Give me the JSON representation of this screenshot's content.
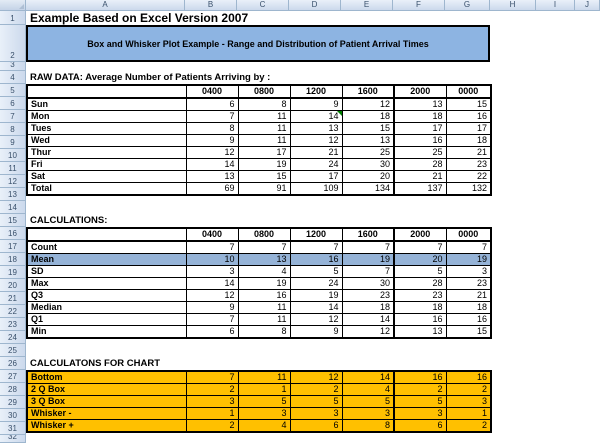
{
  "sheet_title": "Example Based on Excel Version 2007",
  "banner": {
    "text": "Box and Whisker Plot Example - Range and Distribution of Patient Arrival Times",
    "fill_color": "#8DB4E2"
  },
  "grid": {
    "column_headers": [
      "A",
      "B",
      "C",
      "D",
      "E",
      "F",
      "G",
      "H",
      "I",
      "J"
    ],
    "row_numbers": [
      "1",
      "2",
      "3",
      "4",
      "5",
      "6",
      "7",
      "8",
      "9",
      "10",
      "11",
      "12",
      "13",
      "14",
      "15",
      "16",
      "17",
      "18",
      "19",
      "20",
      "21",
      "22",
      "23",
      "24",
      "25",
      "26",
      "27",
      "28",
      "29",
      "30",
      "31",
      "32"
    ]
  },
  "time_headers": [
    "0400",
    "0800",
    "1200",
    "1600",
    "2000",
    "0000"
  ],
  "raw_data": {
    "title": "RAW DATA: Average Number of Patients Arriving by :",
    "rows": [
      {
        "label": "Sun",
        "values": [
          6,
          8,
          9,
          12,
          13,
          15
        ]
      },
      {
        "label": "Mon",
        "values": [
          7,
          11,
          14,
          18,
          18,
          16
        ],
        "note_cell": 2
      },
      {
        "label": "Tues",
        "values": [
          8,
          11,
          13,
          15,
          17,
          17
        ]
      },
      {
        "label": "Wed",
        "values": [
          9,
          11,
          12,
          13,
          16,
          18
        ]
      },
      {
        "label": "Thur",
        "values": [
          12,
          17,
          21,
          25,
          25,
          21
        ]
      },
      {
        "label": "Fri",
        "values": [
          14,
          19,
          24,
          30,
          28,
          23
        ]
      },
      {
        "label": "Sat",
        "values": [
          13,
          15,
          17,
          20,
          21,
          22
        ]
      },
      {
        "label": "Total",
        "values": [
          69,
          91,
          109,
          134,
          137,
          132
        ]
      }
    ]
  },
  "calculations": {
    "title": "CALCULATIONS:",
    "rows": [
      {
        "label": "Count",
        "values": [
          7,
          7,
          7,
          7,
          7,
          7
        ]
      },
      {
        "label": "Mean",
        "values": [
          10,
          13,
          16,
          19,
          20,
          19
        ],
        "highlight": true
      },
      {
        "label": "SD",
        "values": [
          3,
          4,
          5,
          7,
          5,
          3
        ]
      },
      {
        "label": "Max",
        "values": [
          14,
          19,
          24,
          30,
          28,
          23
        ]
      },
      {
        "label": "Q3",
        "values": [
          12,
          16,
          19,
          23,
          23,
          21
        ]
      },
      {
        "label": "Median",
        "values": [
          9,
          11,
          14,
          18,
          18,
          18
        ]
      },
      {
        "label": "Q1",
        "values": [
          7,
          11,
          12,
          14,
          16,
          16
        ]
      },
      {
        "label": "Min",
        "values": [
          6,
          8,
          9,
          12,
          13,
          15
        ]
      }
    ]
  },
  "chart_calcs": {
    "title": "CALCULATONS FOR CHART",
    "fill_color": "#FFC000",
    "rows": [
      {
        "label": "Bottom",
        "values": [
          7,
          11,
          12,
          14,
          16,
          16
        ]
      },
      {
        "label": "2 Q Box",
        "values": [
          2,
          1,
          2,
          4,
          2,
          2
        ]
      },
      {
        "label": "3 Q Box",
        "values": [
          3,
          5,
          5,
          5,
          5,
          3
        ]
      },
      {
        "label": "Whisker -",
        "values": [
          1,
          3,
          3,
          3,
          3,
          1
        ]
      },
      {
        "label": "Whisker +",
        "values": [
          2,
          4,
          6,
          8,
          6,
          2
        ]
      }
    ]
  },
  "colors": {
    "mean_row_fill": "#95B3D7",
    "banner_fill": "#8DB4E2",
    "chart_rows_fill": "#FFC000",
    "table_border": "#000000",
    "header_chrome": "#CBD9EC",
    "note_indicator": "#008000"
  }
}
